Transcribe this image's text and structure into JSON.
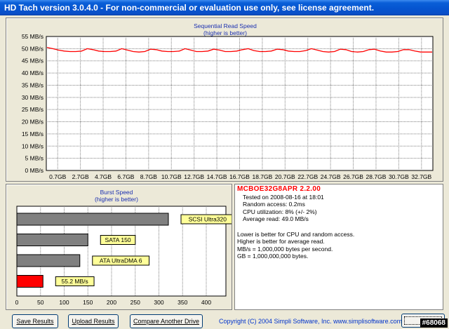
{
  "window": {
    "title": "HD Tach version 3.0.4.0  - For non-commercial or evaluation use only, see license agreement."
  },
  "seq_chart": {
    "title": "Sequential Read Speed",
    "subtitle": "(higher is better)",
    "y_ticks": [
      "55 MB/s",
      "50 MB/s",
      "45 MB/s",
      "40 MB/s",
      "35 MB/s",
      "30 MB/s",
      "25 MB/s",
      "20 MB/s",
      "15 MB/s",
      "10 MB/s",
      "5 MB/s",
      "0 MB/s"
    ],
    "x_ticks": [
      "0.7GB",
      "2.7GB",
      "4.7GB",
      "6.7GB",
      "8.7GB",
      "10.7GB",
      "12.7GB",
      "14.7GB",
      "16.7GB",
      "18.7GB",
      "20.7GB",
      "22.7GB",
      "24.7GB",
      "26.7GB",
      "28.7GB",
      "30.7GB",
      "32.7GB"
    ],
    "line_color": "#ff0000"
  },
  "burst_chart": {
    "title": "Burst Speed",
    "subtitle": "(higher is better)",
    "x_ticks": [
      "0",
      "50",
      "100",
      "150",
      "200",
      "250",
      "300",
      "350",
      "400"
    ]
  },
  "chart_data": [
    {
      "type": "line",
      "title": "Sequential Read Speed",
      "subtitle": "(higher is better)",
      "xlabel": "",
      "ylabel": "",
      "ylim": [
        0,
        55
      ],
      "y_unit": "MB/s",
      "x_tick_labels": [
        "0.7GB",
        "2.7GB",
        "4.7GB",
        "6.7GB",
        "8.7GB",
        "10.7GB",
        "12.7GB",
        "14.7GB",
        "16.7GB",
        "18.7GB",
        "20.7GB",
        "22.7GB",
        "24.7GB",
        "26.7GB",
        "28.7GB",
        "30.7GB",
        "32.7GB"
      ],
      "grid": true,
      "series": [
        {
          "color": "#ff0000",
          "x": [
            0,
            0.5,
            1,
            1.5,
            2,
            2.5,
            3,
            3.5,
            4,
            4.5,
            5,
            5.5,
            6,
            6.5,
            7,
            7.5,
            8,
            8.5,
            9,
            9.5,
            10,
            10.5,
            11,
            11.5,
            12,
            12.5,
            13,
            13.5,
            14,
            14.5,
            15,
            15.5,
            16,
            16.5,
            17,
            17.5,
            18,
            18.5,
            19,
            19.5,
            20,
            20.5,
            21,
            21.5,
            22,
            22.5,
            23,
            23.5,
            24,
            24.5,
            25,
            25.5,
            26,
            26.5,
            27,
            27.5,
            28,
            28.5,
            29,
            29.5,
            30,
            30.5,
            31,
            31.5,
            32,
            32.5,
            33,
            33.5
          ],
          "values": [
            50.5,
            50,
            49.4,
            49,
            48.8,
            48.8,
            49,
            50,
            49.6,
            49,
            48.8,
            48.8,
            49,
            50,
            49.4,
            48.8,
            48.6,
            48.8,
            49.8,
            49.6,
            49,
            48.8,
            48.8,
            49,
            50,
            49.4,
            48.8,
            48.8,
            49,
            49.8,
            49.4,
            48.8,
            48.8,
            49,
            49.6,
            50,
            49.2,
            48.8,
            48.8,
            49,
            49.8,
            49.6,
            49,
            48.8,
            48.8,
            49.2,
            50,
            49.4,
            48.8,
            48.6,
            48.8,
            49.8,
            49.6,
            48.8,
            48.6,
            48.8,
            49.6,
            49.8,
            49,
            48.6,
            48.6,
            48.8,
            49.6,
            49.6,
            49,
            48.6,
            48.6,
            48.6
          ]
        }
      ]
    },
    {
      "type": "bar",
      "orientation": "horizontal",
      "title": "Burst Speed",
      "subtitle": "(higher is better)",
      "xlim": [
        0,
        450
      ],
      "x_tick_labels": [
        "0",
        "50",
        "100",
        "150",
        "200",
        "250",
        "300",
        "350",
        "400"
      ],
      "grid": true,
      "categories": [
        "SCSI Ultra320",
        "SATA 150",
        "ATA UltraDMA 6",
        "55.2 MB/s"
      ],
      "values": [
        320,
        150,
        133,
        55.2
      ],
      "colors": [
        "#808080",
        "#808080",
        "#808080",
        "#ff0000"
      ]
    }
  ],
  "info": {
    "drive": "MCBOE32G8APR  2.2.00",
    "lines": [
      "Tested on 2008-08-16 at 18:01",
      "Random access: 0.2ms",
      "CPU utilization: 8% (+/- 2%)",
      "Average read: 49.0 MB/s"
    ],
    "notes": [
      "Lower is better for CPU and random access.",
      "Higher is better for average read.",
      "MB/s = 1,000,000 bytes per second.",
      "GB = 1,000,000,000 bytes."
    ]
  },
  "buttons": {
    "save": "Save Results",
    "upload": "Upload Results",
    "compare": "Compare Another Drive"
  },
  "copyright": "Copyright (C) 2004 Simpli Software, Inc. www.simplisoftware.com",
  "watermark": "#68068"
}
